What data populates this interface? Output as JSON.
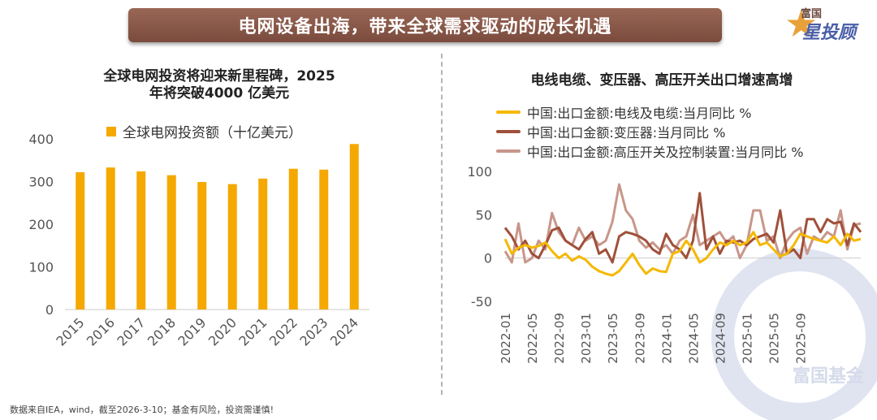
{
  "banner": {
    "title": "电网设备出海，带来全球需求驱动的成长机遇"
  },
  "logo": {
    "small_text": "富国",
    "big_text": "星投顾",
    "watermark_text": "富国基金"
  },
  "footnote": "数据来自IEA，wind，截至2026-3-10；基金有风险，投资需谨慎!",
  "colors": {
    "bar": "#f5a800",
    "series1": "#f5b800",
    "series2": "#a0503a",
    "series3": "#c8968a"
  },
  "chart_data": [
    {
      "type": "bar",
      "title_line1": "全球电网投资将迎来新里程碑，2025",
      "title_line2": "年将突破4000 亿美元",
      "legend": "全球电网投资额（十亿美元）",
      "categories": [
        "2015",
        "2016",
        "2017",
        "2018",
        "2019",
        "2020",
        "2021",
        "2022",
        "2023",
        "2024"
      ],
      "values": [
        322,
        333,
        324,
        315,
        299,
        294,
        307,
        330,
        328,
        388
      ],
      "ylim": [
        0,
        400
      ],
      "yticks": [
        "0",
        "100",
        "200",
        "300",
        "400"
      ]
    },
    {
      "type": "line",
      "title": "电线电缆、变压器、高压开关出口增速高增",
      "ylim": [
        -50,
        100
      ],
      "yticks": [
        "-50",
        "0",
        "50",
        "100"
      ],
      "xticks": [
        "2022-01",
        "2022-05",
        "2022-09",
        "2023-01",
        "2023-05",
        "2023-09",
        "2024-01",
        "2024-05",
        "2024-09",
        "2025-01",
        "2025-05",
        "2025-09"
      ],
      "series": [
        {
          "name": "中国:出口金额:电线及电缆:当月同比 %",
          "values": [
            22,
            5,
            12,
            15,
            12,
            14,
            18,
            8,
            0,
            5,
            -3,
            2,
            -2,
            -10,
            -15,
            -18,
            -20,
            -15,
            -5,
            5,
            -8,
            -18,
            -12,
            -15,
            -16,
            5,
            8,
            20,
            10,
            -5,
            0,
            10,
            18,
            15,
            20,
            15,
            18,
            30,
            15,
            18,
            10,
            2,
            5,
            15,
            28,
            25,
            22,
            20,
            18,
            25,
            15,
            28,
            20,
            22
          ]
        },
        {
          "name": "中国:出口金额:变压器:当月同比 %",
          "values": [
            35,
            25,
            10,
            20,
            5,
            0,
            15,
            32,
            35,
            20,
            15,
            10,
            22,
            30,
            5,
            10,
            -5,
            25,
            30,
            28,
            25,
            20,
            10,
            5,
            28,
            15,
            10,
            0,
            20,
            75,
            10,
            25,
            5,
            20,
            18,
            20,
            15,
            22,
            25,
            28,
            18,
            55,
            5,
            10,
            0,
            45,
            45,
            30,
            45,
            40,
            42,
            15,
            40,
            30
          ]
        },
        {
          "name": "中国:出口金额:高压开关及控制装置:当月同比 %",
          "values": [
            8,
            -5,
            40,
            -5,
            0,
            20,
            10,
            52,
            30,
            20,
            15,
            35,
            20,
            25,
            15,
            20,
            42,
            85,
            55,
            45,
            20,
            12,
            18,
            10,
            15,
            5,
            20,
            25,
            50,
            15,
            20,
            25,
            30,
            18,
            25,
            0,
            15,
            55,
            55,
            20,
            25,
            0,
            20,
            30,
            35,
            5,
            25,
            20,
            30,
            25,
            55,
            10,
            38,
            40
          ]
        }
      ]
    }
  ]
}
